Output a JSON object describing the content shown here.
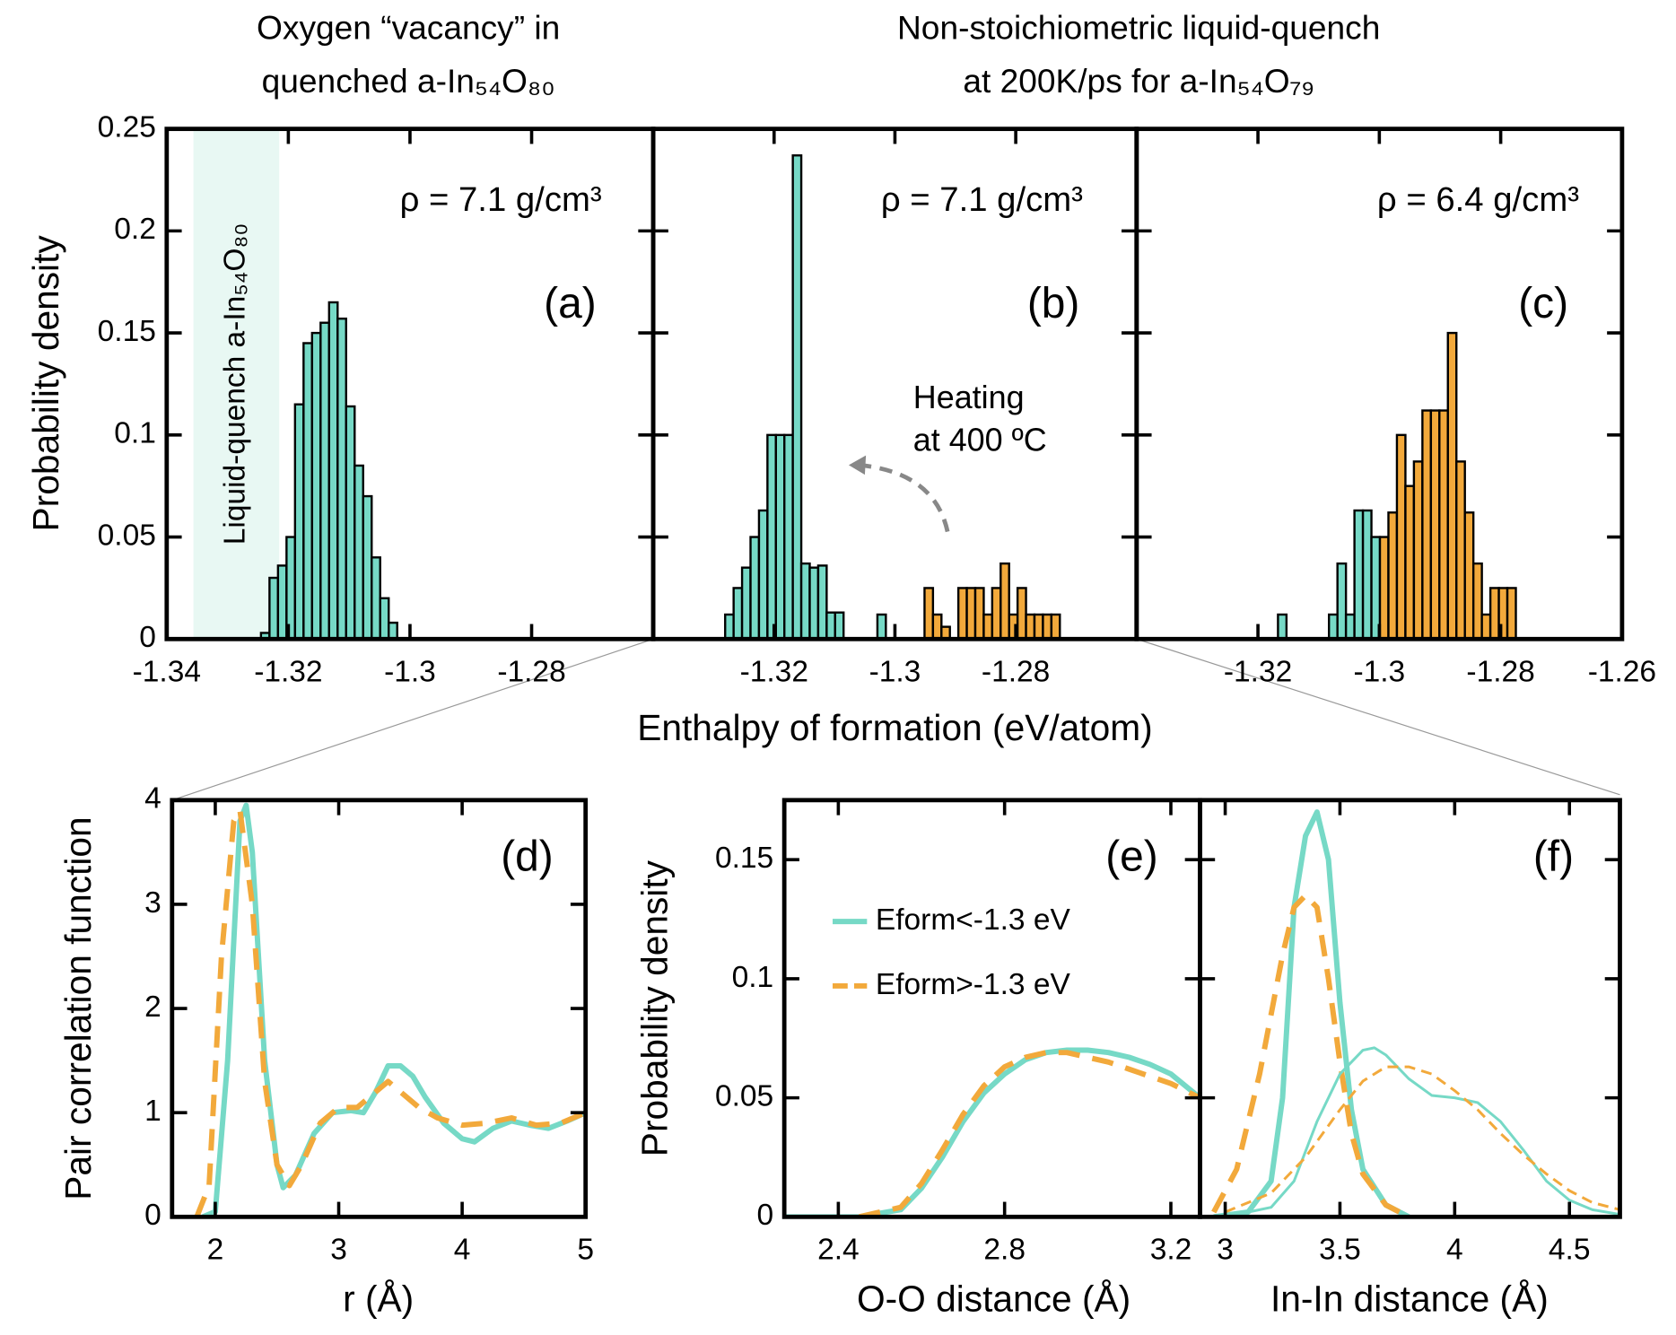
{
  "chart_data": [
    {
      "type": "histogram",
      "title": [
        "Oxygen “vacancy” in",
        "quenched a-In₅₄O₈₀"
      ],
      "ylabel": "Probability density",
      "xlim": [
        -1.34,
        -1.26
      ],
      "ylim": [
        0,
        0.25
      ],
      "xticks": [
        -1.34,
        -1.32,
        -1.3,
        -1.28
      ],
      "yticks": [
        0,
        0.05,
        0.1,
        0.15,
        0.2,
        0.25
      ],
      "shade": {
        "label": "Liquid-quench a-In₅₄O₈₀",
        "x": [
          -1.3356,
          -1.3215
        ],
        "color": "#e8f8f3"
      },
      "annotations": [
        "ρ = 7.1 g/cm³",
        "(a)"
      ],
      "series": [
        {
          "color": "#76d9c6",
          "bins": [
            -1.3245,
            -1.3231,
            -1.3217,
            -1.3203,
            -1.3189,
            -1.3175,
            -1.3161,
            -1.3147,
            -1.3133,
            -1.3119,
            -1.3105,
            -1.3091,
            -1.3077,
            -1.3063,
            -1.3049,
            -1.3035,
            -1.3021
          ],
          "values": [
            0.003,
            0.03,
            0.036,
            0.05,
            0.115,
            0.145,
            0.15,
            0.155,
            0.165,
            0.157,
            0.114,
            0.085,
            0.07,
            0.04,
            0.02,
            0.008
          ]
        }
      ]
    },
    {
      "type": "histogram",
      "title": [
        "Non-stoichiometric liquid-quench",
        "at 200K/ps for a-In₅₄O₇₉"
      ],
      "xlabel": "Enthalpy of formation (eV/atom)",
      "xlim": [
        -1.34,
        -1.26
      ],
      "ylim": [
        0,
        0.25
      ],
      "xticks": [
        -1.32,
        -1.3,
        -1.28
      ],
      "annotations": [
        "ρ = 7.1 g/cm³",
        "(b)",
        "Heating",
        "at 400 ºC"
      ],
      "series": [
        {
          "color": "#76d9c6",
          "bins": [
            -1.3281,
            -1.3267,
            -1.3253,
            -1.3239,
            -1.3225,
            -1.3211,
            -1.3197,
            -1.3183,
            -1.3169,
            -1.3155,
            -1.3141,
            -1.3127,
            -1.3113,
            -1.3099,
            -1.3085,
            -1.3071,
            -1.3057,
            -1.3043,
            -1.3029,
            -1.3015
          ],
          "values": [
            0.012,
            0.025,
            0.035,
            0.05,
            0.063,
            0.1,
            0.1,
            0.1,
            0.237,
            0.037,
            0.035,
            0.036,
            0.013,
            0.013,
            0,
            0,
            0,
            0,
            0.012
          ]
        },
        {
          "color": "#f2a93b",
          "bins": [
            -1.2951,
            -1.2937,
            -1.2923,
            -1.2909,
            -1.2895,
            -1.2881,
            -1.2867,
            -1.2853,
            -1.2839,
            -1.2825,
            -1.2811,
            -1.2797,
            -1.2783,
            -1.2769,
            -1.2755,
            -1.2741,
            -1.2727
          ],
          "values": [
            0.025,
            0.012,
            0.006,
            0,
            0.025,
            0.025,
            0.025,
            0.012,
            0.025,
            0.037,
            0.012,
            0.025,
            0.012,
            0.012,
            0.012,
            0.012
          ]
        }
      ]
    },
    {
      "type": "histogram",
      "xlim": [
        -1.34,
        -1.26
      ],
      "ylim": [
        0,
        0.25
      ],
      "xticks": [
        -1.32,
        -1.3,
        -1.28,
        -1.26
      ],
      "annotations": [
        "ρ = 6.4 g/cm³",
        "(c)"
      ],
      "series": [
        {
          "color": "#76d9c6",
          "bins": [
            -1.3167,
            -1.3153,
            -1.3139,
            -1.3125,
            -1.3111,
            -1.3097,
            -1.3083,
            -1.3069,
            -1.3055,
            -1.3041,
            -1.3027,
            -1.3013,
            -1.2999
          ],
          "values": [
            0.012,
            0,
            0,
            0,
            0,
            0,
            0.012,
            0.037,
            0.012,
            0.063,
            0.063,
            0.05
          ]
        },
        {
          "color": "#f2a93b",
          "bins": [
            -1.2999,
            -1.2985,
            -1.2971,
            -1.2957,
            -1.2943,
            -1.2929,
            -1.2915,
            -1.2901,
            -1.2887,
            -1.2873,
            -1.2859,
            -1.2845,
            -1.2831,
            -1.2817,
            -1.2803,
            -1.2789,
            -1.2775
          ],
          "values": [
            0.05,
            0.062,
            0.1,
            0.075,
            0.087,
            0.112,
            0.112,
            0.112,
            0.15,
            0.087,
            0.062,
            0.037,
            0.012,
            0.025,
            0.025,
            0.025
          ]
        }
      ]
    },
    {
      "type": "line",
      "xlabel": "r (Å)",
      "ylabel": "Pair correlation function",
      "xlim": [
        1.65,
        5
      ],
      "ylim": [
        0,
        4
      ],
      "xticks": [
        2,
        3,
        4,
        5
      ],
      "yticks": [
        0,
        1,
        2,
        3,
        4
      ],
      "annotations": [
        "(d)"
      ],
      "series": [
        {
          "color": "#76d9c6",
          "linewidth": 5,
          "dashed": false,
          "x": [
            1.9,
            2.0,
            2.1,
            2.2,
            2.25,
            2.3,
            2.4,
            2.5,
            2.55,
            2.65,
            2.8,
            2.95,
            3.1,
            3.2,
            3.3,
            3.4,
            3.5,
            3.6,
            3.7,
            3.85,
            4.0,
            4.1,
            4.25,
            4.4,
            4.55,
            4.7,
            4.85,
            5.0
          ],
          "values": [
            0,
            0.05,
            1.5,
            3.8,
            3.95,
            3.5,
            1.5,
            0.5,
            0.28,
            0.4,
            0.8,
            1.0,
            1.02,
            1.0,
            1.2,
            1.45,
            1.45,
            1.35,
            1.15,
            0.9,
            0.75,
            0.72,
            0.85,
            0.92,
            0.88,
            0.85,
            0.92,
            1.0
          ]
        },
        {
          "color": "#f2a93b",
          "linewidth": 5,
          "dashed": true,
          "x": [
            1.85,
            1.95,
            2.05,
            2.15,
            2.2,
            2.3,
            2.4,
            2.5,
            2.6,
            2.7,
            2.85,
            3.0,
            3.15,
            3.3,
            3.4,
            3.5,
            3.65,
            3.8,
            4.0,
            4.2,
            4.4,
            4.6,
            4.8,
            5.0
          ],
          "values": [
            0,
            0.3,
            2.5,
            3.8,
            3.9,
            3.0,
            1.3,
            0.5,
            0.3,
            0.5,
            0.9,
            1.05,
            1.05,
            1.2,
            1.3,
            1.2,
            1.05,
            0.95,
            0.88,
            0.9,
            0.95,
            0.88,
            0.9,
            1.0
          ]
        }
      ]
    },
    {
      "type": "line",
      "xlabel": "O-O distance (Å)",
      "ylabel": "Probability density",
      "xlim": [
        2.27,
        3.27
      ],
      "ylim": [
        0,
        0.175
      ],
      "xticks": [
        2.4,
        2.8,
        3.2
      ],
      "yticks": [
        0,
        0.05,
        0.1,
        0.15
      ],
      "annotations": [
        "(e)"
      ],
      "series": [
        {
          "name": "Eform<-1.3 eV",
          "color": "#76d9c6",
          "linewidth": 5,
          "dashed": false,
          "x": [
            2.27,
            2.45,
            2.55,
            2.6,
            2.65,
            2.7,
            2.75,
            2.8,
            2.85,
            2.9,
            2.95,
            3.0,
            3.05,
            3.1,
            3.15,
            3.2,
            3.27
          ],
          "values": [
            0,
            0,
            0.003,
            0.012,
            0.025,
            0.04,
            0.052,
            0.06,
            0.066,
            0.069,
            0.07,
            0.07,
            0.069,
            0.067,
            0.064,
            0.06,
            0.05
          ]
        },
        {
          "name": "Eform>-1.3 eV",
          "color": "#f2a93b",
          "linewidth": 5,
          "dashed": true,
          "x": [
            2.45,
            2.55,
            2.6,
            2.65,
            2.7,
            2.75,
            2.8,
            2.85,
            2.9,
            2.95,
            3.0,
            3.05,
            3.1,
            3.15,
            3.2,
            3.27
          ],
          "values": [
            0,
            0.004,
            0.014,
            0.028,
            0.043,
            0.055,
            0.063,
            0.067,
            0.069,
            0.069,
            0.067,
            0.065,
            0.062,
            0.059,
            0.056,
            0.05
          ]
        }
      ]
    },
    {
      "type": "line",
      "xlabel": "In-In distance (Å)",
      "xlim": [
        2.89,
        4.72
      ],
      "ylim": [
        0,
        0.175
      ],
      "xticks": [
        3,
        3.5,
        4,
        4.5
      ],
      "annotations": [
        "(f)"
      ],
      "series": [
        {
          "color": "#76d9c6",
          "linewidth": 5,
          "dashed": false,
          "x": [
            2.95,
            3.1,
            3.2,
            3.25,
            3.3,
            3.35,
            3.4,
            3.45,
            3.5,
            3.55,
            3.6,
            3.7,
            3.8
          ],
          "values": [
            0,
            0.002,
            0.015,
            0.05,
            0.13,
            0.16,
            0.17,
            0.15,
            0.09,
            0.045,
            0.02,
            0.005,
            0
          ]
        },
        {
          "color": "#f2a93b",
          "linewidth": 5,
          "dashed": true,
          "x": [
            2.95,
            3.05,
            3.15,
            3.25,
            3.3,
            3.35,
            3.4,
            3.45,
            3.5,
            3.55,
            3.6,
            3.7,
            3.8
          ],
          "values": [
            0.002,
            0.02,
            0.06,
            0.11,
            0.13,
            0.135,
            0.13,
            0.1,
            0.065,
            0.035,
            0.018,
            0.005,
            0
          ]
        },
        {
          "color": "#76d9c6",
          "linewidth": 2.5,
          "dashed": false,
          "x": [
            3.0,
            3.2,
            3.3,
            3.4,
            3.5,
            3.6,
            3.65,
            3.7,
            3.8,
            3.9,
            4.0,
            4.1,
            4.2,
            4.3,
            4.4,
            4.5,
            4.6,
            4.72
          ],
          "values": [
            0,
            0.004,
            0.015,
            0.04,
            0.06,
            0.07,
            0.071,
            0.068,
            0.058,
            0.051,
            0.05,
            0.048,
            0.04,
            0.028,
            0.015,
            0.007,
            0.003,
            0.001
          ]
        },
        {
          "color": "#f2a93b",
          "linewidth": 2.5,
          "dashed": true,
          "x": [
            3.0,
            3.2,
            3.35,
            3.5,
            3.6,
            3.7,
            3.8,
            3.9,
            4.0,
            4.1,
            4.2,
            4.3,
            4.4,
            4.5,
            4.6,
            4.72
          ],
          "values": [
            0.002,
            0.01,
            0.025,
            0.045,
            0.057,
            0.063,
            0.063,
            0.06,
            0.053,
            0.045,
            0.035,
            0.026,
            0.018,
            0.011,
            0.006,
            0.003
          ]
        }
      ]
    }
  ]
}
